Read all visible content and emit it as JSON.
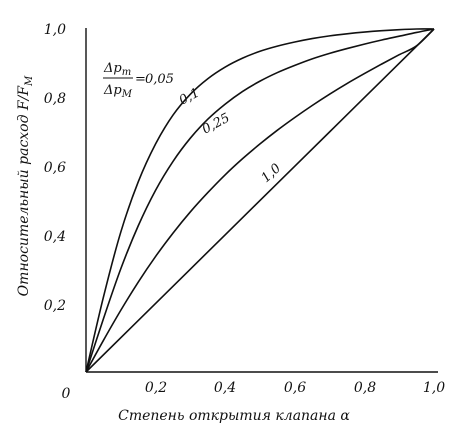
{
  "chart_data": {
    "type": "line",
    "title": "",
    "xlabel": "Степень открытия клапана α",
    "ylabel": "Относительный расход F/F",
    "ylabel_sub": "M",
    "xlim": [
      0,
      1.0
    ],
    "ylim": [
      0,
      1.0
    ],
    "x_ticks": [
      "0",
      "0,2",
      "0,4",
      "0,6",
      "0,8",
      "1,0"
    ],
    "y_ticks": [
      "0,2",
      "0,4",
      "0,6",
      "0,8",
      "1,0"
    ],
    "grid": false,
    "parameter_label": {
      "numerator": "Δp",
      "numerator_sub": "m",
      "denominator": "Δp",
      "denominator_sub": "M",
      "equals": "=",
      "value": "0,05"
    },
    "series": [
      {
        "label": "0,05",
        "x": [
          0,
          0.05,
          0.1,
          0.15,
          0.2,
          0.25,
          0.3,
          0.35,
          0.4,
          0.45,
          0.5,
          0.55,
          0.6,
          0.65,
          0.7,
          0.75,
          0.8,
          0.85,
          0.9,
          0.95,
          1.0
        ],
        "y": [
          0,
          0.218,
          0.408,
          0.554,
          0.665,
          0.749,
          0.81,
          0.855,
          0.889,
          0.915,
          0.935,
          0.95,
          0.962,
          0.972,
          0.98,
          0.986,
          0.991,
          0.995,
          0.998,
          1.0,
          1.0
        ]
      },
      {
        "label": "0,1",
        "x": [
          0,
          0.05,
          0.1,
          0.15,
          0.2,
          0.25,
          0.3,
          0.35,
          0.4,
          0.45,
          0.5,
          0.55,
          0.6,
          0.65,
          0.7,
          0.75,
          0.8,
          0.85,
          0.9,
          0.95,
          1.0
        ],
        "y": [
          0,
          0.155,
          0.301,
          0.426,
          0.53,
          0.614,
          0.682,
          0.737,
          0.781,
          0.818,
          0.848,
          0.873,
          0.894,
          0.913,
          0.929,
          0.943,
          0.956,
          0.968,
          0.979,
          0.99,
          1.0
        ]
      },
      {
        "label": "0,25",
        "x": [
          0,
          0.05,
          0.1,
          0.15,
          0.2,
          0.25,
          0.3,
          0.35,
          0.4,
          0.45,
          0.5,
          0.55,
          0.6,
          0.65,
          0.7,
          0.75,
          0.8,
          0.85,
          0.9,
          0.95,
          1.0
        ],
        "y": [
          0,
          0.092,
          0.18,
          0.262,
          0.337,
          0.405,
          0.467,
          0.523,
          0.575,
          0.622,
          0.665,
          0.705,
          0.742,
          0.777,
          0.81,
          0.841,
          0.87,
          0.898,
          0.925,
          0.951,
          1.0
        ]
      },
      {
        "label": "1,0",
        "x": [
          0,
          0.2,
          0.4,
          0.6,
          0.8,
          1.0
        ],
        "y": [
          0,
          0.2,
          0.4,
          0.6,
          0.8,
          1.0
        ]
      }
    ]
  }
}
